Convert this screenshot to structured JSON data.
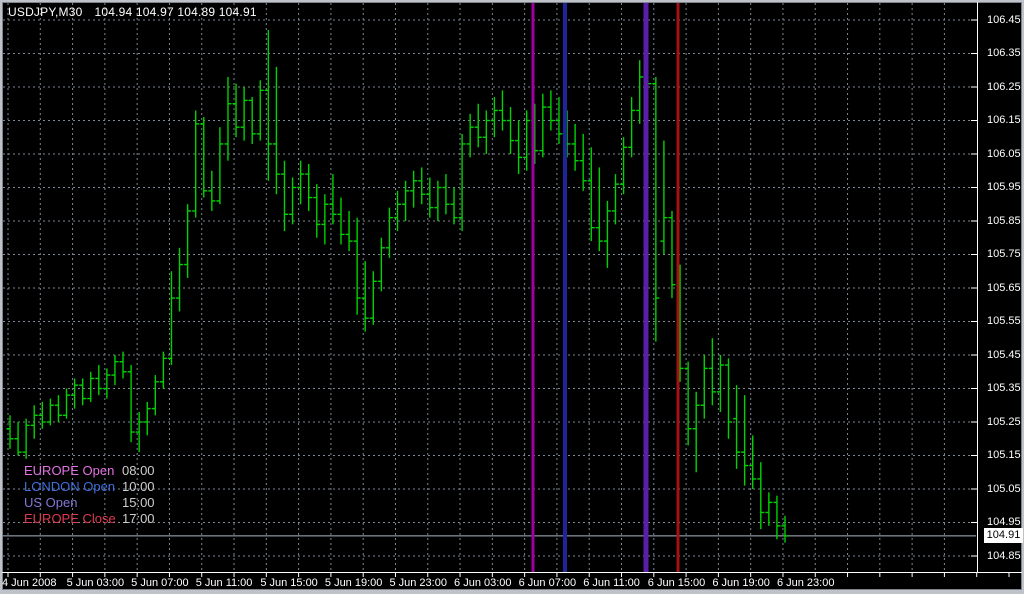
{
  "header": {
    "symbol_period": "USDJPY,M30",
    "quote_line": "104.94 104.97 104.89 104.91"
  },
  "price_axis": {
    "labels": [
      "106.45",
      "106.35",
      "106.25",
      "106.15",
      "106.05",
      "105.95",
      "105.85",
      "105.75",
      "105.65",
      "105.55",
      "105.45",
      "105.35",
      "105.25",
      "105.15",
      "105.05",
      "104.95",
      "104.85"
    ],
    "current": "104.91"
  },
  "time_axis": {
    "labels": [
      "4 Jun 2008",
      "5 Jun 03:00",
      "5 Jun 07:00",
      "5 Jun 11:00",
      "5 Jun 15:00",
      "5 Jun 19:00",
      "5 Jun 23:00",
      "6 Jun 03:00",
      "6 Jun 07:00",
      "6 Jun 11:00",
      "6 Jun 15:00",
      "6 Jun 19:00",
      "6 Jun 23:00"
    ]
  },
  "legend": {
    "rows": [
      {
        "name": "EUROPE Open",
        "time": "08:00",
        "text_color": "#E272E2"
      },
      {
        "name": "LONDON Open",
        "time": "10:00",
        "text_color": "#3E6EDC"
      },
      {
        "name": "US Open",
        "time": "15:00",
        "text_color": "#8377D6"
      },
      {
        "name": "EUROPE Close",
        "time": "17:00",
        "text_color": "#DC3A50"
      }
    ]
  },
  "chart_data": {
    "type": "ohlc-bar",
    "title": "USDJPY,M30",
    "symbol": "USDJPY",
    "timeframe": "M30",
    "current_bar_quote": {
      "open": 104.94,
      "high": 104.97,
      "low": 104.89,
      "close": 104.91
    },
    "current_price": 104.91,
    "ylim": [
      104.8,
      106.5
    ],
    "price_step": 0.1,
    "grid": "dashed",
    "bar_color": "#00D200",
    "grid_color": "#7C8894",
    "axis_line_color": "#FFFFFF",
    "bid_line_color": "#A8B8C4",
    "background": "#000000",
    "sessions": [
      {
        "name": "EUROPE Open",
        "time": "08:00",
        "line_color": "#A000A0",
        "x": 533,
        "width": 3
      },
      {
        "name": "LONDON Open",
        "time": "10:00",
        "line_color": "#20249A",
        "x": 565,
        "width": 4
      },
      {
        "name": "US Open",
        "time": "15:00",
        "line_color": "#5A1FA8",
        "x": 646,
        "width": 5
      },
      {
        "name": "EUROPE Close",
        "time": "17:00",
        "line_color": "#A51213",
        "x": 678,
        "width": 3
      }
    ],
    "bars": [
      [
        105.23,
        105.27,
        105.17,
        105.2
      ],
      [
        105.2,
        105.25,
        105.15,
        105.16
      ],
      [
        105.16,
        105.26,
        105.14,
        105.24
      ],
      [
        105.24,
        105.3,
        105.2,
        105.27
      ],
      [
        105.27,
        105.31,
        105.23,
        105.25
      ],
      [
        105.25,
        105.32,
        105.24,
        105.3
      ],
      [
        105.3,
        105.33,
        105.25,
        105.27
      ],
      [
        105.27,
        105.35,
        105.26,
        105.33
      ],
      [
        105.33,
        105.38,
        105.29,
        105.36
      ],
      [
        105.36,
        105.38,
        105.3,
        105.32
      ],
      [
        105.32,
        105.4,
        105.31,
        105.38
      ],
      [
        105.38,
        105.42,
        105.33,
        105.35
      ],
      [
        105.35,
        105.41,
        105.32,
        105.39
      ],
      [
        105.39,
        105.45,
        105.36,
        105.43
      ],
      [
        105.43,
        105.46,
        105.38,
        105.4
      ],
      [
        105.4,
        105.42,
        105.19,
        105.22
      ],
      [
        105.22,
        105.28,
        105.16,
        105.25
      ],
      [
        105.25,
        105.31,
        105.21,
        105.29
      ],
      [
        105.29,
        105.39,
        105.27,
        105.37
      ],
      [
        105.37,
        105.46,
        105.35,
        105.44
      ],
      [
        105.44,
        105.7,
        105.42,
        105.62
      ],
      [
        105.62,
        105.77,
        105.58,
        105.72
      ],
      [
        105.72,
        105.9,
        105.68,
        105.88
      ],
      [
        105.88,
        106.18,
        105.86,
        106.14
      ],
      [
        106.14,
        106.16,
        105.92,
        105.94
      ],
      [
        105.94,
        106.0,
        105.88,
        105.91
      ],
      [
        105.91,
        106.13,
        105.9,
        106.08
      ],
      [
        106.08,
        106.28,
        106.03,
        106.2
      ],
      [
        106.2,
        106.26,
        106.1,
        106.13
      ],
      [
        106.13,
        106.25,
        106.09,
        106.21
      ],
      [
        106.21,
        106.22,
        106.08,
        106.11
      ],
      [
        106.11,
        106.27,
        106.09,
        106.24
      ],
      [
        106.24,
        106.42,
        105.97,
        106.08
      ],
      [
        106.08,
        106.31,
        105.93,
        105.99
      ],
      [
        105.99,
        106.03,
        105.82,
        105.87
      ],
      [
        105.87,
        105.98,
        105.84,
        105.95
      ],
      [
        105.95,
        106.03,
        105.9,
        105.99
      ],
      [
        105.99,
        106.02,
        105.88,
        105.92
      ],
      [
        105.92,
        105.96,
        105.8,
        105.84
      ],
      [
        105.84,
        105.93,
        105.78,
        105.9
      ],
      [
        105.9,
        105.99,
        105.84,
        105.87
      ],
      [
        105.87,
        105.92,
        105.78,
        105.81
      ],
      [
        105.81,
        105.88,
        105.76,
        105.79
      ],
      [
        105.79,
        105.86,
        105.57,
        105.62
      ],
      [
        105.62,
        105.73,
        105.52,
        105.56
      ],
      [
        105.56,
        105.7,
        105.54,
        105.67
      ],
      [
        105.67,
        105.8,
        105.64,
        105.77
      ],
      [
        105.77,
        105.89,
        105.74,
        105.86
      ],
      [
        105.86,
        105.94,
        105.82,
        105.9
      ],
      [
        105.9,
        105.97,
        105.85,
        105.94
      ],
      [
        105.94,
        106.0,
        105.89,
        105.97
      ],
      [
        105.97,
        106.01,
        105.9,
        105.93
      ],
      [
        105.93,
        105.98,
        105.86,
        105.89
      ],
      [
        105.89,
        105.97,
        105.85,
        105.95
      ],
      [
        105.95,
        105.99,
        105.87,
        105.9
      ],
      [
        105.9,
        105.95,
        105.84,
        105.86
      ],
      [
        105.86,
        106.11,
        105.82,
        106.08
      ],
      [
        106.08,
        106.17,
        106.04,
        106.13
      ],
      [
        106.13,
        106.2,
        106.07,
        106.1
      ],
      [
        106.1,
        106.18,
        106.05,
        106.15
      ],
      [
        106.15,
        106.22,
        106.1,
        106.18
      ],
      [
        106.18,
        106.24,
        106.12,
        106.15
      ],
      [
        106.15,
        106.19,
        106.05,
        106.09
      ],
      [
        106.09,
        106.15,
        105.99,
        106.04
      ],
      [
        106.04,
        106.18,
        106.0,
        106.15
      ],
      [
        106.15,
        106.2,
        106.02,
        106.06
      ],
      [
        106.06,
        106.23,
        106.04,
        106.19
      ],
      [
        106.19,
        106.24,
        106.12,
        106.15
      ],
      [
        106.15,
        106.22,
        106.08,
        106.11
      ],
      [
        106.11,
        106.18,
        106.04,
        106.08
      ],
      [
        106.08,
        106.14,
        106.0,
        106.03
      ],
      [
        106.03,
        106.11,
        105.94,
        105.97
      ],
      [
        105.97,
        106.07,
        105.79,
        105.83
      ],
      [
        105.83,
        106.01,
        105.76,
        105.79
      ],
      [
        105.79,
        105.91,
        105.71,
        105.88
      ],
      [
        105.88,
        105.99,
        105.84,
        105.96
      ],
      [
        105.96,
        106.1,
        105.93,
        106.07
      ],
      [
        106.07,
        106.22,
        106.04,
        106.18
      ],
      [
        106.18,
        106.33,
        106.14,
        106.28
      ],
      [
        106.28,
        106.35,
        106.15,
        106.26
      ],
      [
        106.26,
        106.28,
        105.49,
        105.62
      ],
      [
        105.79,
        106.09,
        105.75,
        105.86
      ],
      [
        105.86,
        105.88,
        105.62,
        105.66
      ],
      [
        105.66,
        105.72,
        105.37,
        105.41
      ],
      [
        105.41,
        105.43,
        105.18,
        105.23
      ],
      [
        105.23,
        105.34,
        105.1,
        105.3
      ],
      [
        105.3,
        105.45,
        105.26,
        105.41
      ],
      [
        105.41,
        105.5,
        105.3,
        105.34
      ],
      [
        105.34,
        105.45,
        105.28,
        105.42
      ],
      [
        105.42,
        105.44,
        105.2,
        105.25
      ],
      [
        105.26,
        105.36,
        105.11,
        105.16
      ],
      [
        105.16,
        105.33,
        105.06,
        105.12
      ],
      [
        105.12,
        105.21,
        105.05,
        105.08
      ],
      [
        105.08,
        105.13,
        104.93,
        104.98
      ],
      [
        104.98,
        105.04,
        104.94,
        105.01
      ],
      [
        105.01,
        105.03,
        104.9,
        104.94
      ],
      [
        104.94,
        104.97,
        104.89,
        104.91
      ]
    ]
  }
}
